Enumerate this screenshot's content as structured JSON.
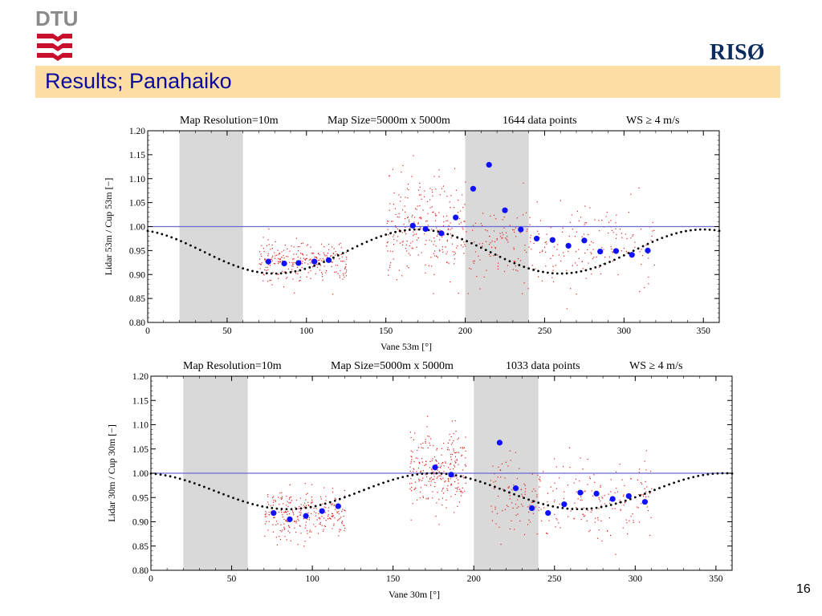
{
  "slide": {
    "title": "Results; Panahaiko",
    "page_number": "16",
    "logos": {
      "left": "DTU",
      "right": "RISØ"
    }
  },
  "colors": {
    "title_band": "#fddfa5",
    "title_text": "#0a0aa0",
    "riso_logo": "#0b2a5e",
    "dtu_red": "#c8102e",
    "dtu_grey": "#8a8a8a",
    "mean_points": "#1010ff",
    "scatter_points": "#e02020",
    "model_curve": "#000000",
    "reference_line": "#6a6ad0",
    "shaded_sectors": "#d9d9d9"
  },
  "chart_data": [
    {
      "type": "scatter",
      "header": {
        "resolution": "Map Resolution=10m",
        "size": "Map Size=5000m x 5000m",
        "points": "1644 data points",
        "ws": "WS ≥ 4 m/s"
      },
      "xlabel": "Vane 53m [°]",
      "ylabel": "Lidar 53m  /  Cup 53m  [−]",
      "xlim": [
        0,
        360
      ],
      "ylim": [
        0.8,
        1.2
      ],
      "xticks": [
        0,
        50,
        100,
        150,
        200,
        250,
        300,
        350
      ],
      "yticks": [
        "0.80",
        "0.85",
        "0.90",
        "0.95",
        "1.00",
        "1.05",
        "1.10",
        "1.15",
        "1.20"
      ],
      "shaded_sectors": [
        [
          20,
          60
        ],
        [
          200,
          240
        ]
      ],
      "reference_line": 1.0,
      "model_curve": {
        "mean": 0.948,
        "amplitude": 0.046,
        "period_deg": 180,
        "minima_deg": [
          80,
          260
        ]
      },
      "series": [
        {
          "x": [
            76,
            86,
            95,
            105,
            114,
            167,
            175,
            185,
            194,
            205,
            215,
            225,
            235,
            245,
            255,
            265,
            275,
            285,
            295,
            305,
            315
          ],
          "values": [
            0.927,
            0.923,
            0.924,
            0.927,
            0.93,
            1.002,
            0.995,
            0.986,
            1.019,
            1.079,
            1.129,
            1.034,
            0.994,
            0.975,
            0.972,
            0.96,
            0.971,
            0.948,
            0.949,
            0.941,
            0.95
          ]
        }
      ],
      "scatter_clusters": [
        {
          "x_range": [
            70,
            125
          ],
          "center": 0.93,
          "spread": 0.02
        },
        {
          "x_range": [
            150,
            200
          ],
          "center": 1.0,
          "spread": 0.05
        },
        {
          "x_range": [
            200,
            320
          ],
          "center": 0.96,
          "spread": 0.045
        }
      ]
    },
    {
      "type": "scatter",
      "header": {
        "resolution": "Map Resolution=10m",
        "size": "Map Size=5000m x 5000m",
        "points": "1033 data points",
        "ws": "WS ≥ 4 m/s"
      },
      "xlabel": "Vane 30m [°]",
      "ylabel": "Lidar 30m  /  Cup 30m  [−]",
      "xlim": [
        0,
        360
      ],
      "ylim": [
        0.8,
        1.2
      ],
      "xticks": [
        0,
        50,
        100,
        150,
        200,
        250,
        300,
        350
      ],
      "yticks": [
        "0.80",
        "0.85",
        "0.90",
        "0.95",
        "1.00",
        "1.05",
        "1.10",
        "1.15",
        "1.20"
      ],
      "shaded_sectors": [
        [
          20,
          60
        ],
        [
          200,
          240
        ]
      ],
      "reference_line": 1.0,
      "model_curve": {
        "mean": 0.963,
        "amplitude": 0.037,
        "period_deg": 180,
        "minima_deg": [
          85,
          265
        ]
      },
      "series": [
        {
          "x": [
            76,
            86,
            96,
            106,
            116,
            176,
            186,
            216,
            226,
            236,
            246,
            256,
            266,
            276,
            286,
            296,
            306
          ],
          "values": [
            0.918,
            0.905,
            0.912,
            0.922,
            0.932,
            1.012,
            0.997,
            1.063,
            0.969,
            0.928,
            0.918,
            0.936,
            0.96,
            0.958,
            0.947,
            0.953,
            0.941
          ]
        }
      ],
      "scatter_clusters": [
        {
          "x_range": [
            70,
            120
          ],
          "center": 0.92,
          "spread": 0.025
        },
        {
          "x_range": [
            160,
            195
          ],
          "center": 1.01,
          "spread": 0.04
        },
        {
          "x_range": [
            210,
            310
          ],
          "center": 0.95,
          "spread": 0.04
        }
      ]
    }
  ]
}
